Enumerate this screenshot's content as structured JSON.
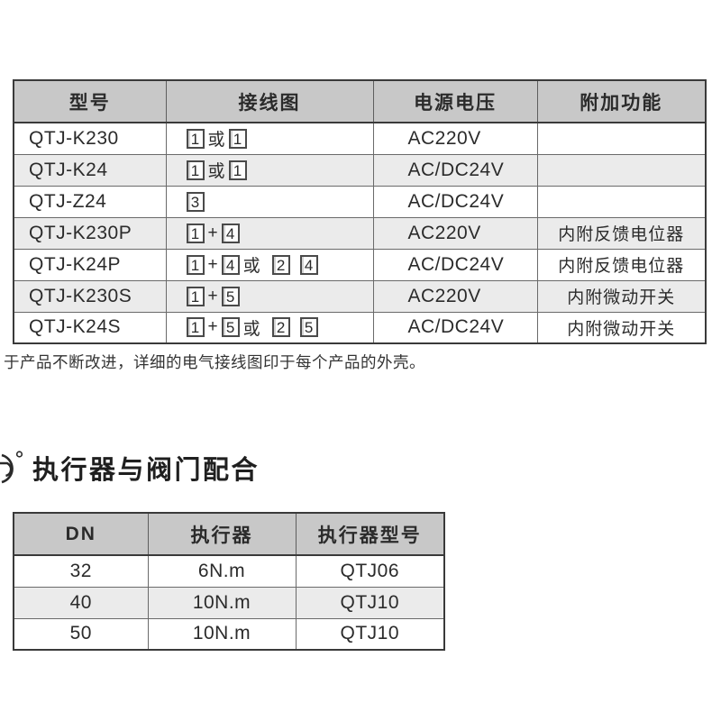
{
  "colors": {
    "header_bg": "#c8c8c8",
    "stripe_bg": "#ebebeb",
    "border_dark": "#3a3a3a",
    "border_mid": "#6a6a6a",
    "text": "#2b2b2b"
  },
  "spec_table": {
    "columns": [
      "型号",
      "接线图",
      "电源电压",
      "附加功能"
    ],
    "rows": [
      {
        "model": "QTJ-K230",
        "wiring": [
          {
            "box": "1"
          },
          {
            "txt": "或"
          },
          {
            "box": "1"
          }
        ],
        "voltage": "AC220V",
        "extra": ""
      },
      {
        "model": "QTJ-K24",
        "wiring": [
          {
            "box": "1"
          },
          {
            "txt": "或"
          },
          {
            "box": "1"
          }
        ],
        "voltage": "AC/DC24V",
        "extra": ""
      },
      {
        "model": "QTJ-Z24",
        "wiring": [
          {
            "box": "3"
          }
        ],
        "voltage": "AC/DC24V",
        "extra": ""
      },
      {
        "model": "QTJ-K230P",
        "wiring": [
          {
            "box": "1"
          },
          {
            "txt": "+"
          },
          {
            "box": "4"
          }
        ],
        "voltage": "AC220V",
        "extra": "内附反馈电位器"
      },
      {
        "model": "QTJ-K24P",
        "wiring": [
          {
            "box": "1"
          },
          {
            "txt": "+"
          },
          {
            "box": "4"
          },
          {
            "txt": "或"
          },
          {
            "gap": true
          },
          {
            "box": "2"
          },
          {
            "gap": true
          },
          {
            "box": "4"
          }
        ],
        "voltage": "AC/DC24V",
        "extra": "内附反馈电位器"
      },
      {
        "model": "QTJ-K230S",
        "wiring": [
          {
            "box": "1"
          },
          {
            "txt": "+"
          },
          {
            "box": "5"
          }
        ],
        "voltage": "AC220V",
        "extra": "内附微动开关"
      },
      {
        "model": "QTJ-K24S",
        "wiring": [
          {
            "box": "1"
          },
          {
            "txt": "+"
          },
          {
            "box": "5"
          },
          {
            "txt": "或"
          },
          {
            "gap": true
          },
          {
            "box": "2"
          },
          {
            "gap": true
          },
          {
            "box": "5"
          }
        ],
        "voltage": "AC/DC24V",
        "extra": "内附微动开关"
      }
    ]
  },
  "note": "于产品不断改进，详细的电气接线图印于每个产品的外壳。",
  "section": {
    "title": "执行器与阀门配合"
  },
  "match_table": {
    "columns": [
      "DN",
      "执行器",
      "执行器型号"
    ],
    "rows": [
      {
        "dn": "32",
        "torque": "6N.m",
        "model": "QTJ06"
      },
      {
        "dn": "40",
        "torque": "10N.m",
        "model": "QTJ10"
      },
      {
        "dn": "50",
        "torque": "10N.m",
        "model": "QTJ10"
      }
    ]
  }
}
